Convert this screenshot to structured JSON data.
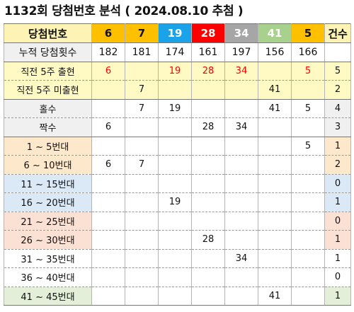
{
  "title": "1132회 당첨번호 분석 ( 2024.08.10 추첨 )",
  "header": {
    "label": "당첨번호",
    "numbers": [
      "6",
      "7",
      "19",
      "28",
      "34",
      "41",
      "5"
    ],
    "count_label": "건수"
  },
  "rows": [
    {
      "label": "누적 당첨횟수",
      "cells": [
        "182",
        "181",
        "174",
        "161",
        "197",
        "156",
        "166"
      ],
      "count": ""
    },
    {
      "label": "직전 5주 출현",
      "cells": [
        "6",
        "",
        "19",
        "28",
        "34",
        "",
        "5"
      ],
      "count": "5"
    },
    {
      "label": "직전 5주 미출현",
      "cells": [
        "",
        "7",
        "",
        "",
        "",
        "41",
        ""
      ],
      "count": "2"
    },
    {
      "label": "홀수",
      "cells": [
        "",
        "7",
        "19",
        "",
        "",
        "41",
        "5"
      ],
      "count": "4"
    },
    {
      "label": "짝수",
      "cells": [
        "6",
        "",
        "",
        "28",
        "34",
        "",
        ""
      ],
      "count": "3"
    },
    {
      "label": "1 ~ 5번대",
      "cells": [
        "",
        "",
        "",
        "",
        "",
        "",
        "5"
      ],
      "count": "1"
    },
    {
      "label": "6 ~ 10번대",
      "cells": [
        "6",
        "7",
        "",
        "",
        "",
        "",
        ""
      ],
      "count": "2"
    },
    {
      "label": "11 ~ 15번대",
      "cells": [
        "",
        "",
        "",
        "",
        "",
        "",
        ""
      ],
      "count": "0"
    },
    {
      "label": "16 ~ 20번대",
      "cells": [
        "",
        "",
        "19",
        "",
        "",
        "",
        ""
      ],
      "count": "1"
    },
    {
      "label": "21 ~ 25번대",
      "cells": [
        "",
        "",
        "",
        "",
        "",
        "",
        ""
      ],
      "count": "0"
    },
    {
      "label": "26 ~ 30번대",
      "cells": [
        "",
        "",
        "",
        "28",
        "",
        "",
        ""
      ],
      "count": "1"
    },
    {
      "label": "31 ~ 35번대",
      "cells": [
        "",
        "",
        "",
        "",
        "34",
        "",
        ""
      ],
      "count": "1"
    },
    {
      "label": "36 ~ 40번대",
      "cells": [
        "",
        "",
        "",
        "",
        "",
        "",
        ""
      ],
      "count": "0"
    },
    {
      "label": "41 ~ 45번대",
      "cells": [
        "",
        "",
        "",
        "",
        "",
        "41",
        ""
      ],
      "count": "1"
    }
  ],
  "colors": {
    "ball_yellow": "#ffc000",
    "ball_blue": "#1aa3e8",
    "ball_red": "#ff0000",
    "ball_gray": "#a6a6a6",
    "ball_green": "#a9d18e",
    "highlight_red_text": "#ff0000"
  }
}
